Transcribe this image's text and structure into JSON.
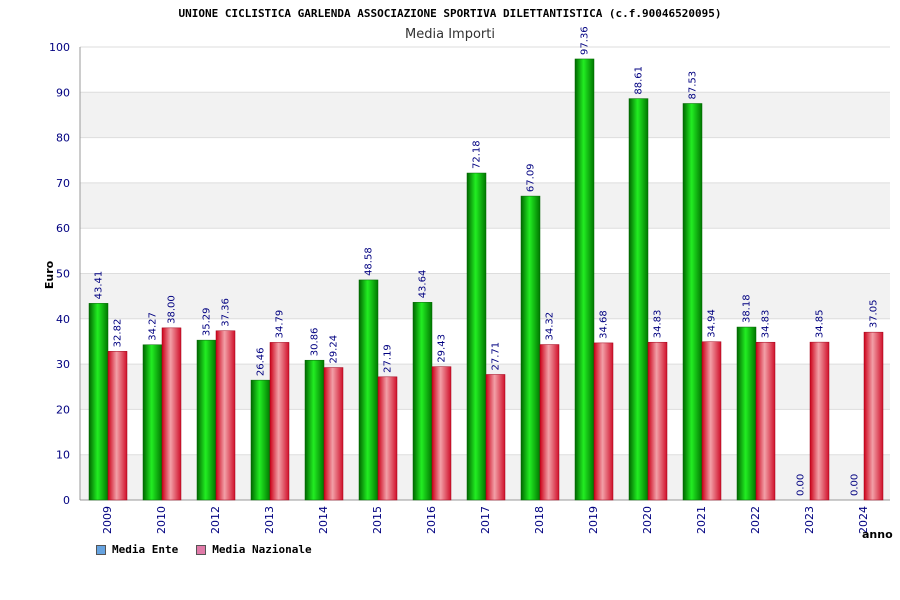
{
  "chart_data": {
    "type": "bar",
    "title": "UNIONE CICLISTICA GARLENDA ASSOCIAZIONE SPORTIVA DILETTANTISTICA (c.f.90046520095)",
    "subtitle": "Media Importi",
    "xlabel": "anno",
    "ylabel": "Euro",
    "ylim": [
      0,
      100
    ],
    "yticks": [
      0,
      10,
      20,
      30,
      40,
      50,
      60,
      70,
      80,
      90,
      100
    ],
    "categories": [
      "2009",
      "2010",
      "2012",
      "2013",
      "2014",
      "2015",
      "2016",
      "2017",
      "2018",
      "2019",
      "2020",
      "2021",
      "2022",
      "2023",
      "2024"
    ],
    "series": [
      {
        "name": "Media Ente",
        "color": "#00aa00",
        "legend_color": "#66a3e0",
        "values": [
          43.41,
          34.27,
          35.29,
          26.46,
          30.86,
          48.58,
          43.64,
          72.18,
          67.09,
          97.36,
          88.61,
          87.53,
          38.18,
          0.0,
          0.0
        ],
        "labels": [
          "43.41",
          "34.27",
          "35.29",
          "26.46",
          "30.86",
          "48.58",
          "43.64",
          "72.18",
          "67.09",
          "97.36",
          "88.61",
          "87.53",
          "38.18",
          "0.00",
          "0.00"
        ]
      },
      {
        "name": "Media Nazionale",
        "color": "#e0102a",
        "legend_color": "#e07aa8",
        "values": [
          32.82,
          38.0,
          37.36,
          34.79,
          29.24,
          27.19,
          29.43,
          27.71,
          34.32,
          34.68,
          34.83,
          34.94,
          34.83,
          34.85,
          37.05
        ],
        "labels": [
          "32.82",
          "38.00",
          "37.36",
          "34.79",
          "29.24",
          "27.19",
          "29.43",
          "27.71",
          "34.32",
          "34.68",
          "34.83",
          "34.94",
          "34.83",
          "34.85",
          "37.05"
        ]
      }
    ],
    "grid": true,
    "legend_position": "bottom-left"
  }
}
